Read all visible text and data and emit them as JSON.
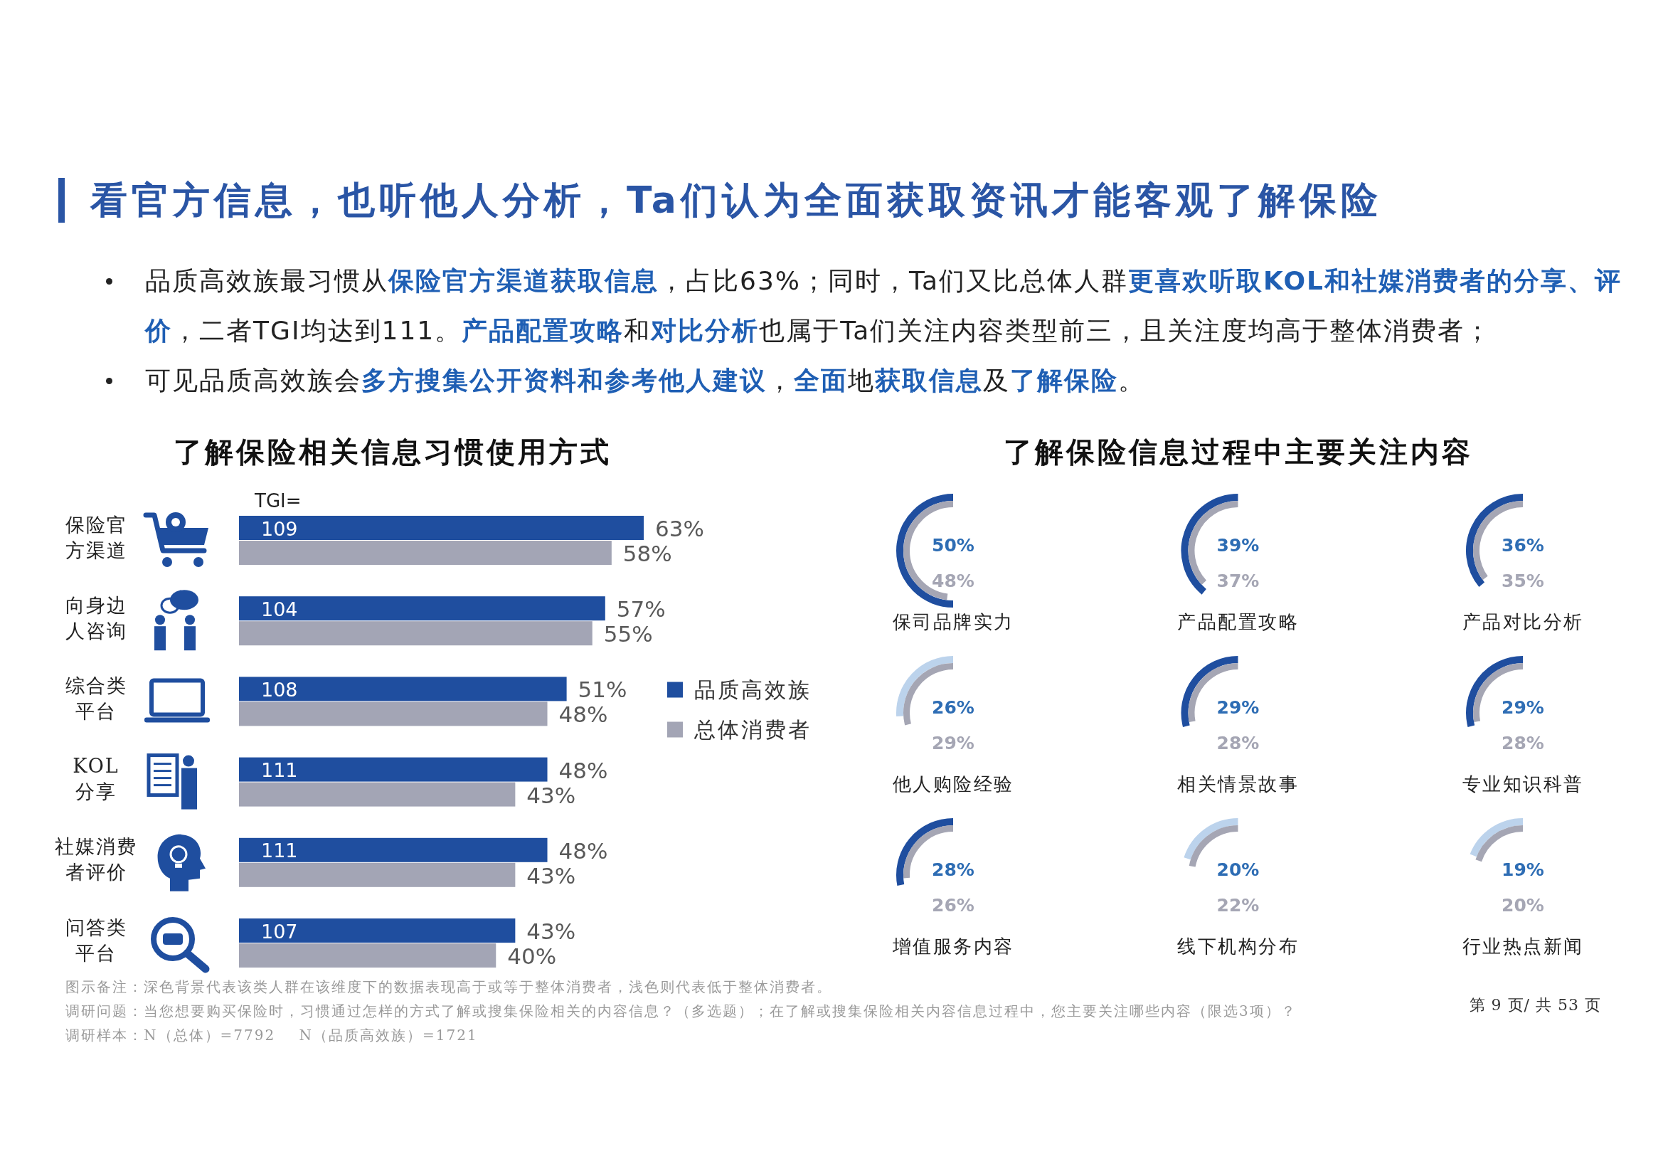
{
  "chart_data": [
    {
      "type": "other",
      "title": "看官方信息，也听他人分析，Ta们认为全面获取资讯才能客观了解保险",
      "annotations": [
        "品质高效族最习惯从**保险官方渠道获取信息**，占比63%；同时，Ta们又比总体人群**更喜欢听取KOL和社媒消费者的分享、评价**，二者TGI均达到111。**产品配置攻略**和**对比分析**也属于Ta们关注内容类型前三，且关注度均高于整体消费者；",
        "可见品质高效族会**多方搜集公开资料和参考他人建议**，**全面**地**获取信息**及**了解保险**。"
      ]
    },
    {
      "type": "bar",
      "orientation": "horizontal",
      "title": "了解保险相关信息习惯使用方式",
      "categories": [
        "保险官方渠道",
        "向身边人咨询",
        "综合类平台",
        "KOL分享",
        "社媒消费者评价",
        "问答类平台"
      ],
      "series": [
        {
          "name": "品质高效族",
          "color": "#1f4e9f",
          "values": [
            63,
            57,
            51,
            48,
            48,
            43
          ],
          "value_labels": [
            "63%",
            "57%",
            "51%",
            "48%",
            "48%",
            "43%"
          ]
        },
        {
          "name": "总体消费者",
          "color": "#a3a5b5",
          "values": [
            58,
            55,
            48,
            43,
            43,
            40
          ],
          "value_labels": [
            "58%",
            "55%",
            "48%",
            "43%",
            "43%",
            "40%"
          ]
        }
      ],
      "legend": "right",
      "annotations": [
        "TGI=",
        {
          "text": "109",
          "y": "保险官方渠道"
        },
        {
          "text": "104",
          "y": "向身边人咨询"
        },
        {
          "text": "108",
          "y": "综合类平台"
        },
        {
          "text": "111",
          "y": "KOL分享"
        },
        {
          "text": "111",
          "y": "社媒消费者评价"
        },
        {
          "text": "107",
          "y": "问答类平台"
        }
      ]
    },
    {
      "type": "other",
      "title": "了解保险信息过程中主要关注内容",
      "categories": [
        "保司品牌实力",
        "产品配置攻略",
        "产品对比分析",
        "他人购险经验",
        "相关情景故事",
        "专业知识科普",
        "增值服务内容",
        "线下机构分布",
        "行业热点新闻"
      ],
      "series": [
        {
          "colors": [
            "#1f4e9f",
            "#1f4e9f",
            "#1f4e9f",
            "#bcd3ec",
            "#1f4e9f",
            "#1f4e9f",
            "#1f4e9f",
            "#bcd3ec",
            "#bcd3ec"
          ],
          "values": [
            50,
            39,
            36,
            26,
            29,
            29,
            28,
            20,
            19
          ],
          "value_labels": [
            "50%",
            "39%",
            "36%",
            "26%",
            "29%",
            "29%",
            "28%",
            "20%",
            "19%"
          ]
        },
        {
          "color": "#a5a6b4",
          "values": [
            48,
            37,
            35,
            29,
            28,
            28,
            26,
            22,
            20
          ],
          "value_labels": [
            "48%",
            "37%",
            "35%",
            "29%",
            "28%",
            "28%",
            "26%",
            "22%",
            "20%"
          ]
        }
      ]
    },
    {
      "type": "other",
      "annotations": [
        "图示备注：深色背景代表该类人群在该维度下的数据表现高于或等于整体消费者，浅色则代表低于整体消费者。",
        "调研问题：当您想要购买保险时，习惯通过怎样的方式了解或搜集保险相关的内容信息？（多选题）；在了解或搜集保险相关内容信息过程中，您主要关注哪些内容（限选3项）？",
        "调研样本：N（总体）=7792    N（品质高效族）=1721",
        "第 9 页/ 共 53 页"
      ]
    }
  ]
}
